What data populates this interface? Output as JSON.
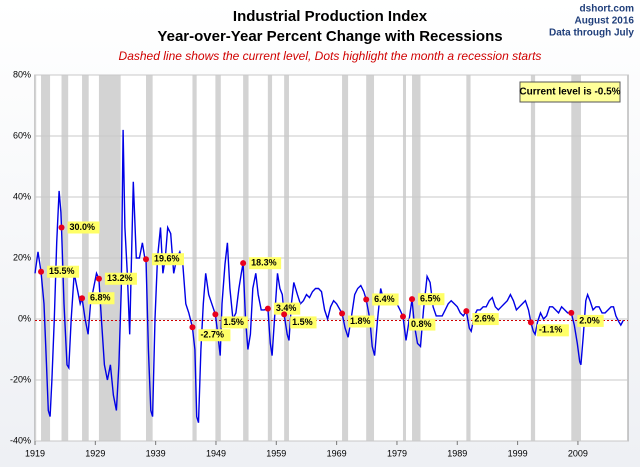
{
  "chart_data": {
    "type": "line",
    "title": "Industrial Production Index",
    "subtitle": "Year-over-Year Percent Change with Recessions",
    "note": "Dashed line shows the current level, Dots highlight the month a recession starts",
    "source": "dshort.com",
    "date": "August 2016",
    "data_through": "Data through July",
    "annotation": "Current level is -0.5%",
    "current_level": -0.5,
    "color": "#0000e6",
    "recession_color": "#d3d3d3",
    "dot_color": "#e8001c",
    "grid": true,
    "xlim": [
      1919.0,
      2017.3
    ],
    "xticks": [
      1919,
      1929,
      1939,
      1949,
      1959,
      1969,
      1979,
      1989,
      1999,
      2009
    ],
    "ylim": [
      -40,
      80
    ],
    "yticks": [
      {
        "value": -40,
        "label": "-40%"
      },
      {
        "value": -20,
        "label": "-20%"
      },
      {
        "value": 0,
        "label": "0%"
      },
      {
        "value": 20,
        "label": "20%"
      },
      {
        "value": 40,
        "label": "40%"
      },
      {
        "value": 60,
        "label": "60%"
      },
      {
        "value": 80,
        "label": "80%"
      }
    ],
    "recessions": [
      [
        1919.0,
        1919.2
      ],
      [
        1920.0,
        1921.5
      ],
      [
        1923.4,
        1924.5
      ],
      [
        1926.8,
        1927.9
      ],
      [
        1929.6,
        1933.2
      ],
      [
        1937.4,
        1938.5
      ],
      [
        1945.1,
        1945.8
      ],
      [
        1948.9,
        1949.8
      ],
      [
        1953.5,
        1954.4
      ],
      [
        1957.6,
        1958.3
      ],
      [
        1960.3,
        1961.1
      ],
      [
        1969.9,
        1970.9
      ],
      [
        1973.9,
        1975.2
      ],
      [
        1980.0,
        1980.5
      ],
      [
        1981.5,
        1982.9
      ],
      [
        1990.5,
        1991.2
      ],
      [
        2001.2,
        2001.9
      ],
      [
        2007.9,
        2009.5
      ]
    ],
    "recession_dots": {
      "x": [
        1920.0,
        1923.4,
        1926.8,
        1929.6,
        1937.4,
        1945.1,
        1948.9,
        1953.5,
        1957.6,
        1960.3,
        1969.9,
        1973.9,
        1980.0,
        1981.5,
        1990.5,
        2001.2,
        2007.9
      ],
      "values": [
        15.5,
        30.0,
        6.8,
        13.2,
        19.6,
        -2.7,
        1.5,
        18.3,
        3.4,
        1.5,
        1.8,
        6.4,
        0.8,
        6.5,
        2.6,
        -1.1,
        2.0
      ],
      "value_labels": [
        "15.5%",
        "30.0%",
        "6.8%",
        "13.2%",
        "19.6%",
        "-2.7%",
        "1.5%",
        "18.3%",
        "3.4%",
        "1.5%",
        "1.8%",
        "6.4%",
        "0.8%",
        "6.5%",
        "2.6%",
        "-1.1%",
        "2.0%"
      ]
    },
    "x": [
      1919.0,
      1919.5,
      1920.0,
      1920.5,
      1920.9,
      1921.2,
      1921.5,
      1921.8,
      1922.2,
      1922.6,
      1923.0,
      1923.3,
      1923.4,
      1923.8,
      1924.3,
      1924.6,
      1925.0,
      1925.5,
      1926.0,
      1926.5,
      1926.8,
      1927.3,
      1927.8,
      1928.2,
      1928.7,
      1929.2,
      1929.6,
      1930.0,
      1930.5,
      1931.0,
      1931.5,
      1932.0,
      1932.5,
      1932.9,
      1933.3,
      1933.6,
      1933.9,
      1934.3,
      1934.7,
      1935.0,
      1935.3,
      1935.8,
      1936.3,
      1936.8,
      1937.2,
      1937.4,
      1937.8,
      1938.2,
      1938.5,
      1938.9,
      1939.3,
      1939.8,
      1940.2,
      1940.6,
      1941.0,
      1941.5,
      1942.0,
      1942.5,
      1943.0,
      1943.5,
      1944.0,
      1944.5,
      1945.1,
      1945.5,
      1945.8,
      1946.1,
      1946.5,
      1946.9,
      1947.3,
      1947.8,
      1948.3,
      1948.9,
      1949.3,
      1949.7,
      1950.0,
      1950.5,
      1950.9,
      1951.3,
      1951.8,
      1952.3,
      1952.8,
      1953.2,
      1953.5,
      1953.9,
      1954.3,
      1954.7,
      1955.1,
      1955.6,
      1956.0,
      1956.5,
      1957.0,
      1957.6,
      1958.0,
      1958.3,
      1958.8,
      1959.2,
      1959.6,
      1960.0,
      1960.3,
      1960.8,
      1961.1,
      1961.5,
      1961.9,
      1962.5,
      1963.0,
      1963.5,
      1964.0,
      1964.5,
      1965.0,
      1965.5,
      1966.0,
      1966.5,
      1967.0,
      1967.5,
      1968.0,
      1968.5,
      1969.0,
      1969.9,
      1970.4,
      1970.9,
      1971.4,
      1972.0,
      1972.5,
      1973.0,
      1973.5,
      1973.9,
      1974.5,
      1974.9,
      1975.3,
      1975.8,
      1976.3,
      1976.8,
      1977.5,
      1978.0,
      1978.5,
      1979.0,
      1979.5,
      1980.0,
      1980.5,
      1980.9,
      1981.5,
      1981.9,
      1982.4,
      1982.9,
      1983.4,
      1984.0,
      1984.5,
      1985.0,
      1985.5,
      1986.0,
      1986.5,
      1987.0,
      1987.5,
      1988.0,
      1988.5,
      1989.0,
      1989.5,
      1990.0,
      1990.5,
      1991.0,
      1991.3,
      1991.8,
      1992.3,
      1992.8,
      1993.3,
      1993.8,
      1994.3,
      1994.8,
      1995.3,
      1995.8,
      1996.3,
      1996.8,
      1997.3,
      1997.8,
      1998.3,
      1998.8,
      1999.3,
      1999.8,
      2000.3,
      2000.8,
      2001.2,
      2001.6,
      2001.9,
      2002.3,
      2002.8,
      2003.3,
      2003.8,
      2004.3,
      2004.8,
      2005.3,
      2005.8,
      2006.3,
      2006.8,
      2007.3,
      2007.9,
      2008.4,
      2008.9,
      2009.3,
      2009.5,
      2009.9,
      2010.3,
      2010.6,
      2011.0,
      2011.5,
      2012.0,
      2012.5,
      2013.0,
      2013.5,
      2014.0,
      2014.5,
      2014.9,
      2015.3,
      2015.8,
      2016.1,
      2016.5
    ],
    "values": [
      15,
      22,
      15.5,
      5,
      -15,
      -30,
      -32,
      -20,
      0,
      25,
      42,
      35,
      30,
      5,
      -15,
      -16,
      0,
      15,
      10,
      5,
      6.8,
      0,
      -5,
      5,
      10,
      15,
      13.2,
      0,
      -15,
      -20,
      -15,
      -25,
      -30,
      -15,
      10,
      62,
      30,
      15,
      -5,
      20,
      45,
      20,
      20,
      25,
      20,
      19.6,
      -10,
      -30,
      -32,
      0,
      20,
      30,
      15,
      20,
      30,
      28,
      15,
      20,
      22,
      18,
      5,
      2,
      -2.7,
      -10,
      -32,
      -34,
      -10,
      5,
      15,
      8,
      5,
      1.5,
      -5,
      -12,
      5,
      18,
      25,
      10,
      0,
      2,
      10,
      15,
      18.3,
      0,
      -10,
      -5,
      10,
      15,
      8,
      3,
      3,
      3.4,
      -8,
      -12,
      3,
      15,
      10,
      8,
      1.5,
      -5,
      -7,
      5,
      12,
      8,
      5,
      6,
      8,
      7,
      9,
      10,
      10,
      9,
      3,
      0,
      4,
      6,
      5,
      1.8,
      -3,
      -6,
      0,
      8,
      10,
      11,
      9,
      6.4,
      0,
      -9,
      -12,
      0,
      10,
      6,
      7,
      6,
      7,
      5,
      3,
      0.8,
      -7,
      -2,
      6.5,
      -2,
      -8,
      -9,
      3,
      14,
      12,
      4,
      1,
      1,
      1,
      3,
      5,
      6,
      5,
      4,
      2,
      1,
      2.6,
      -3,
      -4,
      1,
      3,
      3,
      4,
      4,
      6,
      7,
      4,
      3,
      4,
      5,
      6,
      8,
      6,
      3,
      4,
      5,
      6,
      3,
      -1.1,
      -4,
      -5,
      -1,
      2,
      0,
      1,
      4,
      4,
      3,
      2,
      4,
      3,
      2,
      2.0,
      -2,
      -8,
      -14,
      -15,
      -5,
      6,
      8,
      6,
      3,
      4,
      4,
      2,
      2,
      3,
      4,
      4,
      1,
      -1,
      -2,
      -0.5
    ]
  }
}
